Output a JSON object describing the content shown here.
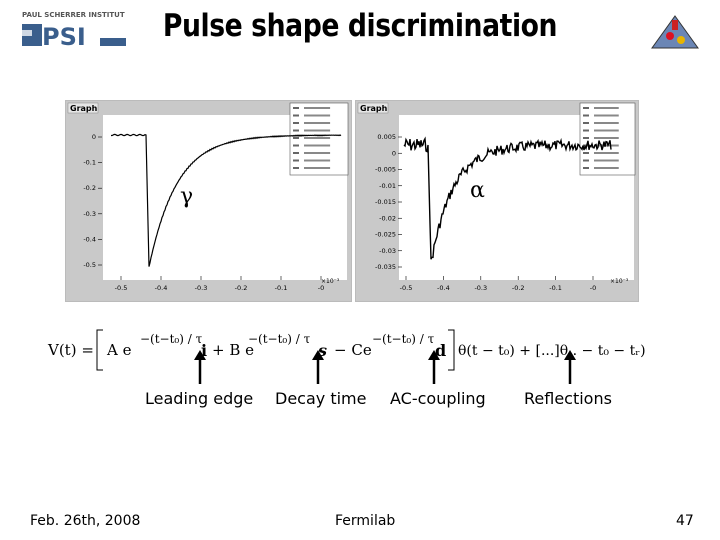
{
  "slide": {
    "title": "Pulse shape discrimination",
    "logo_left_text": "PAUL SCHERRER INSTITUT",
    "logo_left_mark": "PSI",
    "footer_date": "Feb. 26th, 2008",
    "footer_institution": "Fermilab",
    "page_number": "47"
  },
  "plots": [
    {
      "title": "Graph",
      "particle_label": "γ",
      "y_ticks": [
        "0",
        "-0.1",
        "-0.2",
        "-0.3",
        "-0.4",
        "-0.5"
      ],
      "x_ticks": [
        "-0.5",
        "-0.4",
        "-0.3",
        "-0.2",
        "-0.1",
        "-0"
      ],
      "x_exponent": "×10⁻³"
    },
    {
      "title": "Graph",
      "particle_label": "α",
      "y_ticks": [
        "0.005",
        "0",
        "-0.005",
        "-0.01",
        "-0.015",
        "-0.02",
        "-0.025",
        "-0.03",
        "-0.035"
      ],
      "x_ticks": [
        "-0.5",
        "-0.4",
        "-0.3",
        "-0.2",
        "-0.1",
        "-0"
      ],
      "x_exponent": "×10⁻³"
    }
  ],
  "equation": {
    "lhs": "V(t) =",
    "t1_coef": "A e",
    "t1_exp": "−(t−t₀) / τ",
    "t1_sub": "i",
    "t2_coef": "+ B e",
    "t2_exp": "−(t−t₀) / τ",
    "t2_sub": "s",
    "t3_coef": "− Ce",
    "t3_exp": "−(t−t₀) / τ",
    "t3_sub": "d",
    "tail": "θ(t − t₀) + [...]θ.. − t₀ − tᵣ)"
  },
  "annotations": {
    "leading_edge": "Leading edge",
    "decay_time": "Decay time",
    "ac_coupling": "AC-coupling",
    "reflections": "Reflections"
  }
}
